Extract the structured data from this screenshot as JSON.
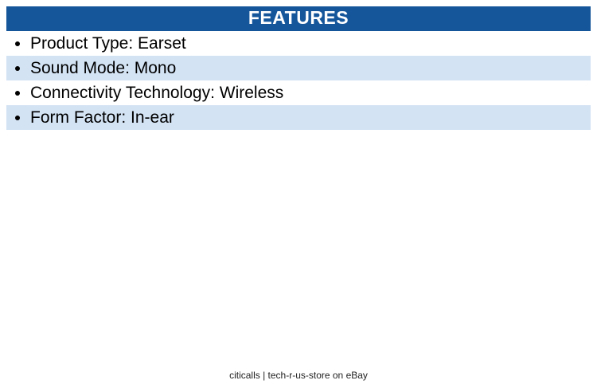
{
  "header": {
    "title": "FEATURES"
  },
  "features": {
    "rows": [
      {
        "text": "Product Type: Earset"
      },
      {
        "text": "Sound Mode: Mono"
      },
      {
        "text": "Connectivity Technology: Wireless"
      },
      {
        "text": "Form Factor: In-ear"
      }
    ]
  },
  "footer": {
    "text": "citicalls | tech-r-us-store on eBay"
  },
  "colors": {
    "header_bg": "#15569B",
    "header_text": "#FFFFFF",
    "row_highlight": "#D3E3F4",
    "body_text": "#000000"
  }
}
